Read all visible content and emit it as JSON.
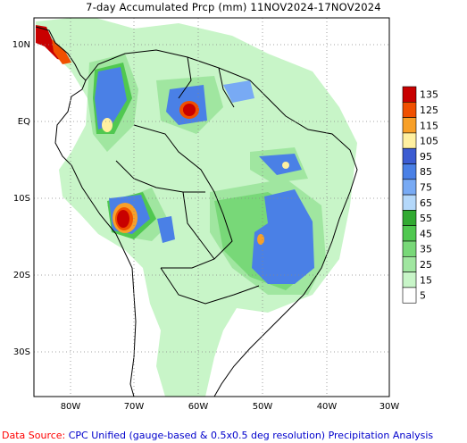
{
  "title": "7-day Accumulated Prcp (mm) 11NOV2024-17NOV2024",
  "axes": {
    "lat_labels": [
      "10N",
      "EQ",
      "10S",
      "20S",
      "30S"
    ],
    "lon_labels": [
      "80W",
      "70W",
      "60W",
      "50W",
      "40W",
      "30W"
    ]
  },
  "colorbar": {
    "levels": [
      "135",
      "125",
      "115",
      "105",
      "95",
      "85",
      "75",
      "65",
      "55",
      "45",
      "35",
      "25",
      "15",
      "5"
    ],
    "colors": [
      "#c80000",
      "#f05000",
      "#f8a028",
      "#fff0a0",
      "#3c5cd2",
      "#4a80e6",
      "#78aaf4",
      "#b4d8fa",
      "#32aa32",
      "#50c850",
      "#78d878",
      "#a0e6a0",
      "#c8f5c8",
      "#ffffff"
    ]
  },
  "source": {
    "label": "Data Source:",
    "text": " CPC Unified (gauge-based & 0.5x0.5 deg resolution) Precipitation Analysis"
  }
}
